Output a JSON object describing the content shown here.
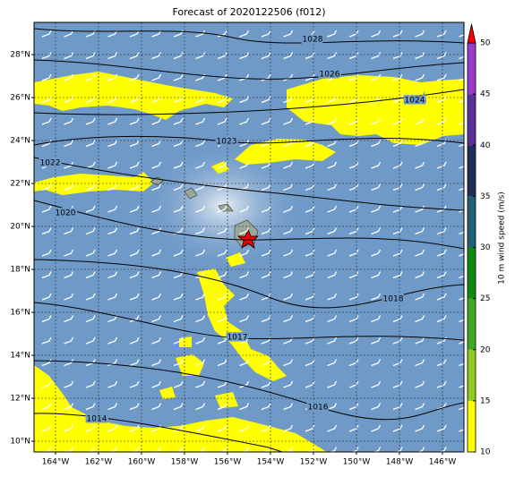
{
  "title": "Forecast of 2020122506 (f012)",
  "map": {
    "lon_range": [
      -165,
      -145
    ],
    "lat_range": [
      9.5,
      29.5
    ],
    "lon_ticks": [
      {
        "value": -164,
        "label": "164°W"
      },
      {
        "value": -162,
        "label": "162°W"
      },
      {
        "value": -160,
        "label": "160°W"
      },
      {
        "value": -158,
        "label": "158°W"
      },
      {
        "value": -156,
        "label": "156°W"
      },
      {
        "value": -154,
        "label": "154°W"
      },
      {
        "value": -152,
        "label": "152°W"
      },
      {
        "value": -150,
        "label": "150°W"
      },
      {
        "value": -148,
        "label": "148°W"
      },
      {
        "value": -146,
        "label": "146°W"
      }
    ],
    "lat_ticks": [
      {
        "value": 10,
        "label": "10°N"
      },
      {
        "value": 12,
        "label": "12°N"
      },
      {
        "value": 14,
        "label": "14°N"
      },
      {
        "value": 16,
        "label": "16°N"
      },
      {
        "value": 18,
        "label": "18°N"
      },
      {
        "value": 20,
        "label": "20°N"
      },
      {
        "value": 22,
        "label": "22°N"
      },
      {
        "value": 24,
        "label": "24°N"
      },
      {
        "value": 26,
        "label": "26°N"
      },
      {
        "value": 28,
        "label": "28°N"
      }
    ],
    "grid": true
  },
  "contours": [
    {
      "level": 1028
    },
    {
      "level": 1026
    },
    {
      "level": 1024
    },
    {
      "level": 1023
    },
    {
      "level": 1022
    },
    {
      "level": 1020
    },
    {
      "level": 1018
    },
    {
      "level": 1017
    },
    {
      "level": 1016
    },
    {
      "level": 1014
    }
  ],
  "colorbar": {
    "label": "10 m wind speed (m/s)",
    "range": [
      10,
      50
    ],
    "ticks": [
      10,
      15,
      20,
      25,
      30,
      35,
      40,
      45,
      50
    ],
    "colors": [
      "#ffff00",
      "#8fcc1f",
      "#3faa1f",
      "#0f8a0f",
      "#1f5f78",
      "#1f2f5a",
      "#5a2f9a",
      "#9a3ac8"
    ],
    "extend_color": "#ff0000"
  }
}
